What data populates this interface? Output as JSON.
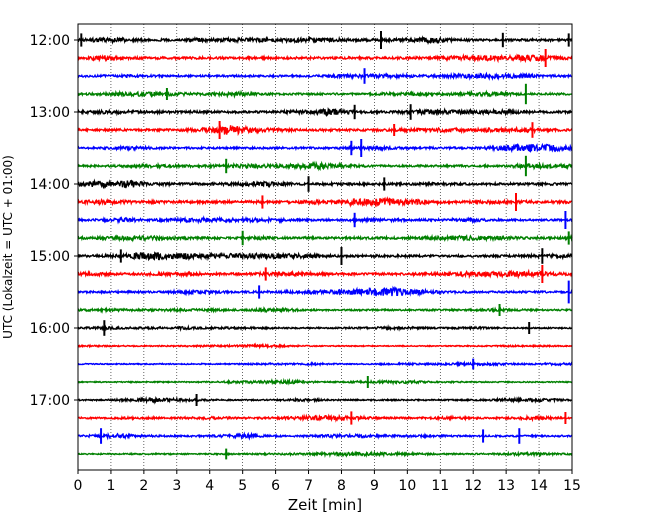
{
  "chart_data": {
    "type": "line",
    "title": "",
    "xlabel": "Zeit  [min]",
    "ylabel": "UTC (Lokalzeit = UTC + 01:00)",
    "xlim": [
      0,
      15
    ],
    "x_ticks": [
      0,
      1,
      2,
      3,
      4,
      5,
      6,
      7,
      8,
      9,
      10,
      11,
      12,
      13,
      14,
      15
    ],
    "x_tick_labels": [
      "0",
      "1",
      "2",
      "3",
      "4",
      "5",
      "6",
      "7",
      "8",
      "9",
      "10",
      "11",
      "12",
      "13",
      "14",
      "15"
    ],
    "y_tick_labels": [
      "12:00",
      "13:00",
      "14:00",
      "15:00",
      "16:00",
      "17:00"
    ],
    "minutes_per_trace": 15,
    "grid": "vertical dotted",
    "color_cycle": [
      "#000000",
      "#ff0000",
      "#0000ff",
      "#008000"
    ],
    "traces": [
      {
        "start": "12:00",
        "amplitude": 0.7,
        "spikes": [
          {
            "x": 9.2,
            "a": 1.0
          },
          {
            "x": 12.9,
            "a": 0.7
          },
          {
            "x": 0.1,
            "a": 0.6
          },
          {
            "x": 14.9,
            "a": 0.6
          }
        ]
      },
      {
        "start": "12:15",
        "amplitude": 0.7,
        "spikes": [
          {
            "x": 14.2,
            "a": 1.0
          }
        ]
      },
      {
        "start": "12:30",
        "amplitude": 0.6,
        "spikes": [
          {
            "x": 8.7,
            "a": 0.8
          }
        ]
      },
      {
        "start": "12:45",
        "amplitude": 0.6,
        "spikes": [
          {
            "x": 13.6,
            "a": 1.2
          },
          {
            "x": 2.7,
            "a": 0.5
          }
        ]
      },
      {
        "start": "13:00",
        "amplitude": 0.7,
        "spikes": [
          {
            "x": 10.1,
            "a": 0.8
          },
          {
            "x": 8.4,
            "a": 0.7
          }
        ]
      },
      {
        "start": "13:15",
        "amplitude": 0.7,
        "spikes": [
          {
            "x": 4.3,
            "a": 1.0
          },
          {
            "x": 13.8,
            "a": 0.8
          },
          {
            "x": 9.6,
            "a": 0.5
          }
        ]
      },
      {
        "start": "13:30",
        "amplitude": 0.6,
        "spikes": [
          {
            "x": 8.6,
            "a": 1.0
          },
          {
            "x": 8.3,
            "a": 0.7
          }
        ]
      },
      {
        "start": "13:45",
        "amplitude": 0.6,
        "spikes": [
          {
            "x": 13.6,
            "a": 1.2
          },
          {
            "x": 4.5,
            "a": 0.7
          }
        ]
      },
      {
        "start": "14:00",
        "amplitude": 0.7,
        "spikes": [
          {
            "x": 7.0,
            "a": 0.8
          },
          {
            "x": 9.3,
            "a": 0.6
          }
        ]
      },
      {
        "start": "14:15",
        "amplitude": 0.8,
        "spikes": [
          {
            "x": 13.3,
            "a": 1.0
          },
          {
            "x": 5.6,
            "a": 0.6
          }
        ]
      },
      {
        "start": "14:30",
        "amplitude": 0.6,
        "spikes": [
          {
            "x": 14.8,
            "a": 1.0
          },
          {
            "x": 8.4,
            "a": 0.7
          }
        ]
      },
      {
        "start": "14:45",
        "amplitude": 0.7,
        "spikes": [
          {
            "x": 5.0,
            "a": 0.7
          },
          {
            "x": 14.9,
            "a": 0.6
          }
        ]
      },
      {
        "start": "15:00",
        "amplitude": 0.7,
        "spikes": [
          {
            "x": 8.0,
            "a": 1.0
          },
          {
            "x": 14.1,
            "a": 0.8
          },
          {
            "x": 1.3,
            "a": 0.6
          }
        ]
      },
      {
        "start": "15:15",
        "amplitude": 0.7,
        "spikes": [
          {
            "x": 14.1,
            "a": 1.0
          },
          {
            "x": 5.7,
            "a": 0.6
          }
        ]
      },
      {
        "start": "15:30",
        "amplitude": 0.6,
        "spikes": [
          {
            "x": 14.9,
            "a": 1.4
          },
          {
            "x": 5.5,
            "a": 0.6
          }
        ]
      },
      {
        "start": "15:45",
        "amplitude": 0.5,
        "spikes": [
          {
            "x": 12.8,
            "a": 0.5
          }
        ]
      },
      {
        "start": "16:00",
        "amplitude": 0.4,
        "spikes": [
          {
            "x": 0.8,
            "a": 0.8
          },
          {
            "x": 13.7,
            "a": 0.5
          }
        ]
      },
      {
        "start": "16:15",
        "amplitude": 0.3,
        "spikes": []
      },
      {
        "start": "16:30",
        "amplitude": 0.35,
        "spikes": [
          {
            "x": 12.0,
            "a": 0.4
          }
        ]
      },
      {
        "start": "16:45",
        "amplitude": 0.35,
        "spikes": [
          {
            "x": 8.8,
            "a": 0.5
          }
        ]
      },
      {
        "start": "17:00",
        "amplitude": 0.4,
        "spikes": [
          {
            "x": 3.6,
            "a": 0.5
          }
        ]
      },
      {
        "start": "17:15",
        "amplitude": 0.5,
        "spikes": [
          {
            "x": 8.3,
            "a": 0.6
          },
          {
            "x": 14.8,
            "a": 0.5
          }
        ]
      },
      {
        "start": "17:30",
        "amplitude": 0.5,
        "spikes": [
          {
            "x": 0.7,
            "a": 0.8
          },
          {
            "x": 13.4,
            "a": 0.8
          },
          {
            "x": 12.3,
            "a": 0.6
          }
        ]
      },
      {
        "start": "17:45",
        "amplitude": 0.4,
        "spikes": [
          {
            "x": 4.5,
            "a": 0.4
          }
        ]
      }
    ]
  }
}
